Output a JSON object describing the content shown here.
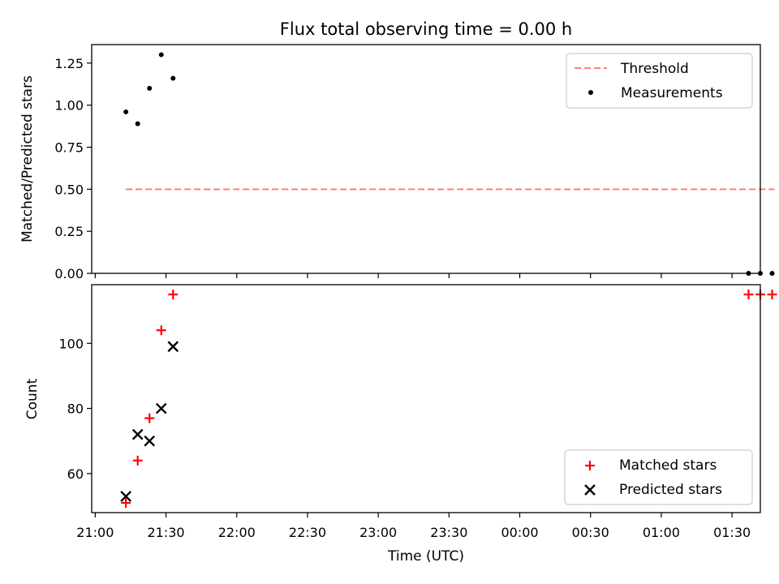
{
  "title": "Flux total observing time = 0.00 h",
  "colors": {
    "threshold": "#ff7f7f",
    "measurements": "#000000",
    "matched": "#ff0000",
    "predicted": "#000000"
  },
  "chart_data": [
    {
      "type": "scatter",
      "panel": "top",
      "ylabel": "Matched/Predicted stars",
      "xlabel": "",
      "ylim": [
        0,
        1.36
      ],
      "yticks": [
        "0.00",
        "0.25",
        "0.50",
        "0.75",
        "1.00",
        "1.25"
      ],
      "yticks_values": [
        0,
        0.25,
        0.5,
        0.75,
        1.0,
        1.25
      ],
      "legend": {
        "placement": "top-right",
        "entries": [
          "Threshold",
          "Measurements"
        ]
      },
      "series": [
        {
          "name": "Threshold",
          "style": "dashed-line",
          "x": [
            "21:13",
            "01:48"
          ],
          "y": [
            0.5,
            0.5
          ]
        },
        {
          "name": "Measurements",
          "style": "dot",
          "x": [
            "21:13",
            "21:18",
            "21:23",
            "21:28",
            "21:33",
            "01:37",
            "01:42",
            "01:47"
          ],
          "y": [
            0.96,
            0.89,
            1.1,
            1.3,
            1.16,
            0.0,
            0.0,
            0.0
          ]
        }
      ]
    },
    {
      "type": "scatter",
      "panel": "bottom",
      "ylabel": "Count",
      "xlabel": "Time (UTC)",
      "ylim": [
        48,
        118
      ],
      "yticks": [
        "60",
        "80",
        "100"
      ],
      "yticks_values": [
        60,
        80,
        100
      ],
      "xticks": [
        "21:00",
        "21:30",
        "22:00",
        "22:30",
        "23:00",
        "23:30",
        "00:00",
        "00:30",
        "01:00",
        "01:30"
      ],
      "legend": {
        "placement": "bottom-right",
        "entries": [
          "Matched stars",
          "Predicted stars"
        ]
      },
      "series": [
        {
          "name": "Matched stars",
          "style": "plus",
          "x": [
            "21:13",
            "21:18",
            "21:23",
            "21:28",
            "21:33",
            "01:37",
            "01:42",
            "01:47"
          ],
          "y": [
            51,
            64,
            77,
            104,
            115,
            115,
            115,
            115
          ]
        },
        {
          "name": "Predicted stars",
          "style": "cross",
          "x": [
            "21:13",
            "21:18",
            "21:23",
            "21:28",
            "21:33"
          ],
          "y": [
            53,
            72,
            70,
            80,
            99
          ]
        }
      ]
    }
  ]
}
